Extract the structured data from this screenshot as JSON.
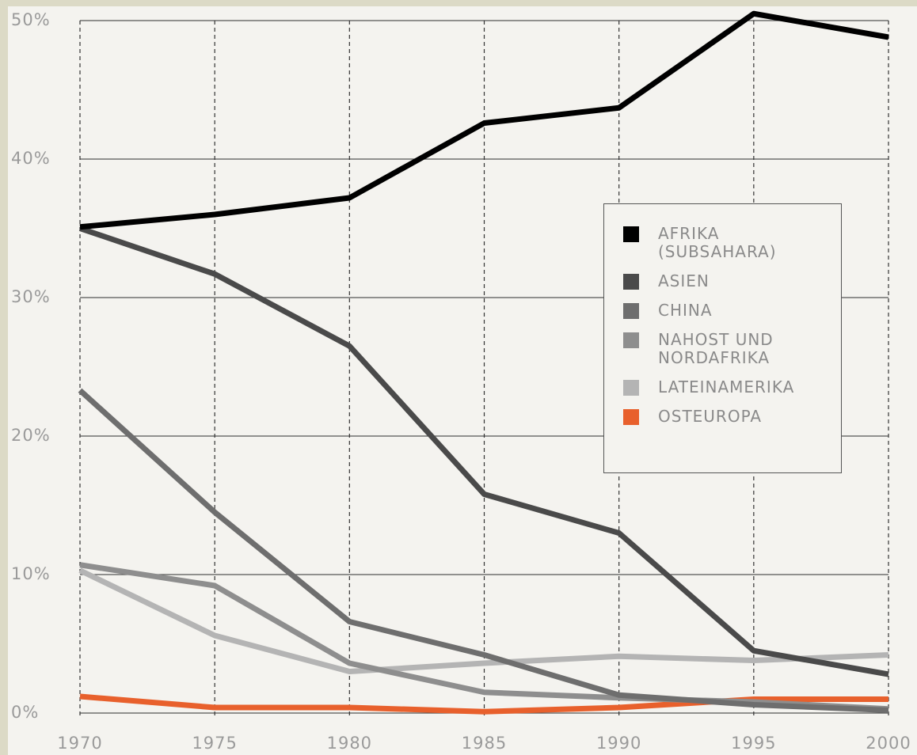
{
  "chart_data": {
    "type": "line",
    "x": [
      1970,
      1975,
      1980,
      1985,
      1990,
      1995,
      2000
    ],
    "xlim": [
      1970,
      2000
    ],
    "xticks": [
      1970,
      1975,
      1980,
      1985,
      1990,
      1995,
      2000
    ],
    "ylim": [
      0,
      50
    ],
    "yticks": [
      {
        "value": 0,
        "label": "0%"
      },
      {
        "value": 10,
        "label": "10%"
      },
      {
        "value": 20,
        "label": "20%"
      },
      {
        "value": 30,
        "label": "30%"
      },
      {
        "value": 40,
        "label": "40%"
      },
      {
        "value": 50,
        "label": "50%"
      }
    ],
    "grid": true,
    "legend": "right",
    "series": [
      {
        "name": "AFRIKA\n(SUBSAHARA)",
        "color": "#000000",
        "values": [
          35.1,
          36.0,
          37.2,
          42.6,
          43.7,
          50.5,
          48.8
        ]
      },
      {
        "name": "ASIEN",
        "color": "#4a4a4a",
        "values": [
          35.0,
          31.7,
          26.5,
          15.8,
          13.0,
          4.5,
          2.8
        ]
      },
      {
        "name": "CHINA",
        "color": "#6e6e6e",
        "values": [
          23.3,
          14.5,
          6.6,
          4.2,
          1.3,
          0.6,
          0.2
        ]
      },
      {
        "name": "NAHOST UND\nNORDAFRIKA",
        "color": "#8e8e8e",
        "values": [
          10.7,
          9.2,
          3.6,
          1.5,
          1.1,
          0.8,
          0.3
        ]
      },
      {
        "name": "LATEINAMERIKA",
        "color": "#b4b4b4",
        "values": [
          10.3,
          5.6,
          3.0,
          3.6,
          4.1,
          3.8,
          4.2
        ]
      },
      {
        "name": "OSTEUROPA",
        "color": "#e8602c",
        "values": [
          1.2,
          0.4,
          0.4,
          0.1,
          0.4,
          1.0,
          1.0
        ]
      }
    ]
  }
}
